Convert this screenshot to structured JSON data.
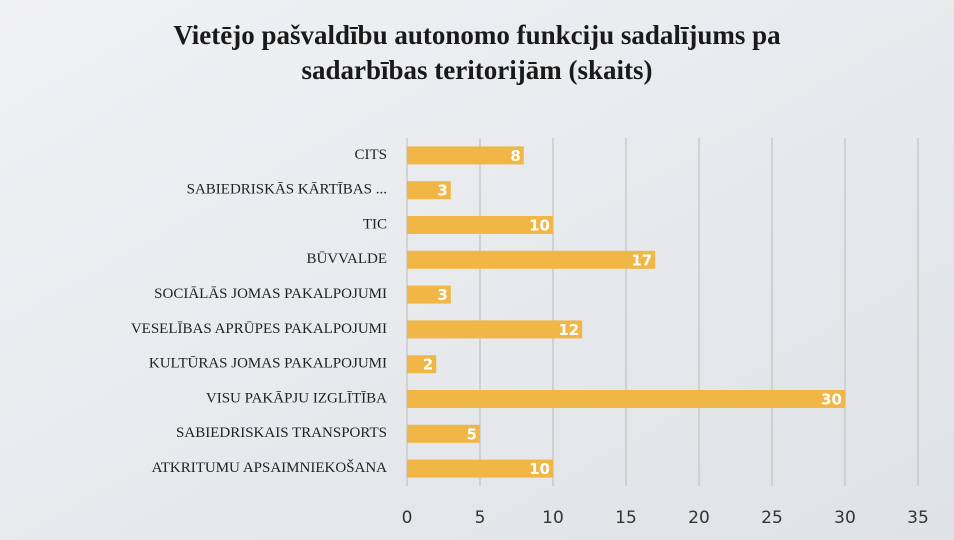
{
  "chart_data": {
    "type": "bar",
    "orientation": "horizontal",
    "title": "Vietējo pašvaldību autonomo funkciju sadalījums pa sadarbības teritorijām (skaits)",
    "title_lines": [
      "Vietējo pašvaldību autonomo funkciju sadalījums pa",
      "sadarbības teritorijām  (skaits)"
    ],
    "categories": [
      "CITS",
      "SABIEDRISKĀS  KĀRTĪBAS ...",
      "TIC",
      "BŪVVALDE",
      "SOCIĀLĀS  JOMAS PAKALPOJUMI",
      "VESELĪBAS  APRŪPES PAKALPOJUMI",
      "KULTŪRAS  JOMAS PAKALPOJUMI",
      "VISU  PAKĀPJU  IZGLĪTĪBA",
      "SABIEDRISKAIS  TRANSPORTS",
      "ATKRITUMU  APSAIMNIEKOŠANA"
    ],
    "values": [
      8,
      3,
      10,
      17,
      3,
      12,
      2,
      30,
      5,
      10
    ],
    "color": "#f0b646",
    "xlim": [
      0,
      35
    ],
    "xticks": [
      0,
      5,
      10,
      15,
      20,
      25,
      30,
      35
    ],
    "grid": true
  }
}
